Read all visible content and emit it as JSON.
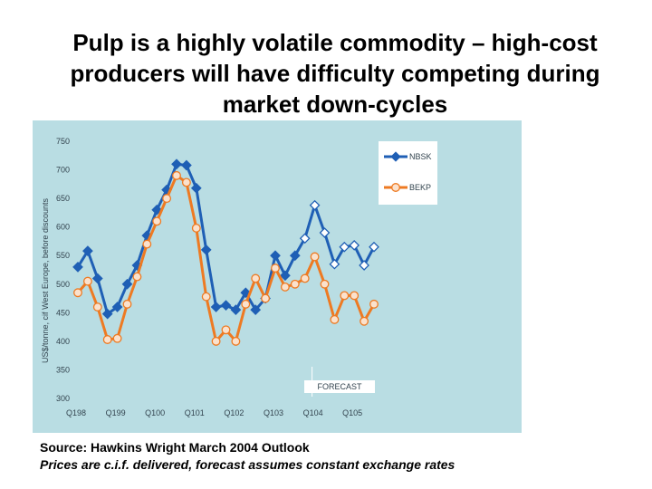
{
  "slide": {
    "title": "Pulp is a highly volatile commodity – high-cost producers will have difficulty competing during market down-cycles",
    "source": "Source: Hawkins Wright March 2004 Outlook",
    "note": "Prices are c.i.f. delivered, forecast assumes constant exchange rates"
  },
  "colors": {
    "plot_bg": "#b9dde3",
    "nbsk": "#1f5fb5",
    "bekp": "#ee7a22",
    "axis_text": "#33444f"
  },
  "chart_data": {
    "type": "line",
    "title": "",
    "xlabel": "",
    "ylabel": "US$/tonne, cif West Europe, before discounts",
    "ylim": [
      300,
      750
    ],
    "yticks": [
      "750",
      "700",
      "650",
      "600",
      "550",
      "500",
      "450",
      "400",
      "350",
      "300"
    ],
    "xticks": [
      "Q198",
      "Q199",
      "Q100",
      "Q101",
      "Q102",
      "Q103",
      "Q104",
      "Q105"
    ],
    "forecast_label": "FORECAST",
    "forecast_start_index": 24,
    "series": [
      {
        "name": "NBSK",
        "values": [
          530,
          558,
          510,
          448,
          460,
          500,
          533,
          585,
          630,
          665,
          710,
          708,
          668,
          560,
          460,
          463,
          455,
          485,
          455,
          475,
          550,
          515,
          550,
          580,
          638,
          590,
          535,
          565,
          568,
          533,
          565
        ]
      },
      {
        "name": "BEKP",
        "values": [
          485,
          505,
          460,
          403,
          405,
          465,
          513,
          570,
          610,
          650,
          690,
          678,
          598,
          478,
          400,
          420,
          400,
          465,
          510,
          475,
          528,
          495,
          500,
          510,
          548,
          500,
          438,
          480,
          480,
          435,
          465
        ]
      }
    ]
  }
}
